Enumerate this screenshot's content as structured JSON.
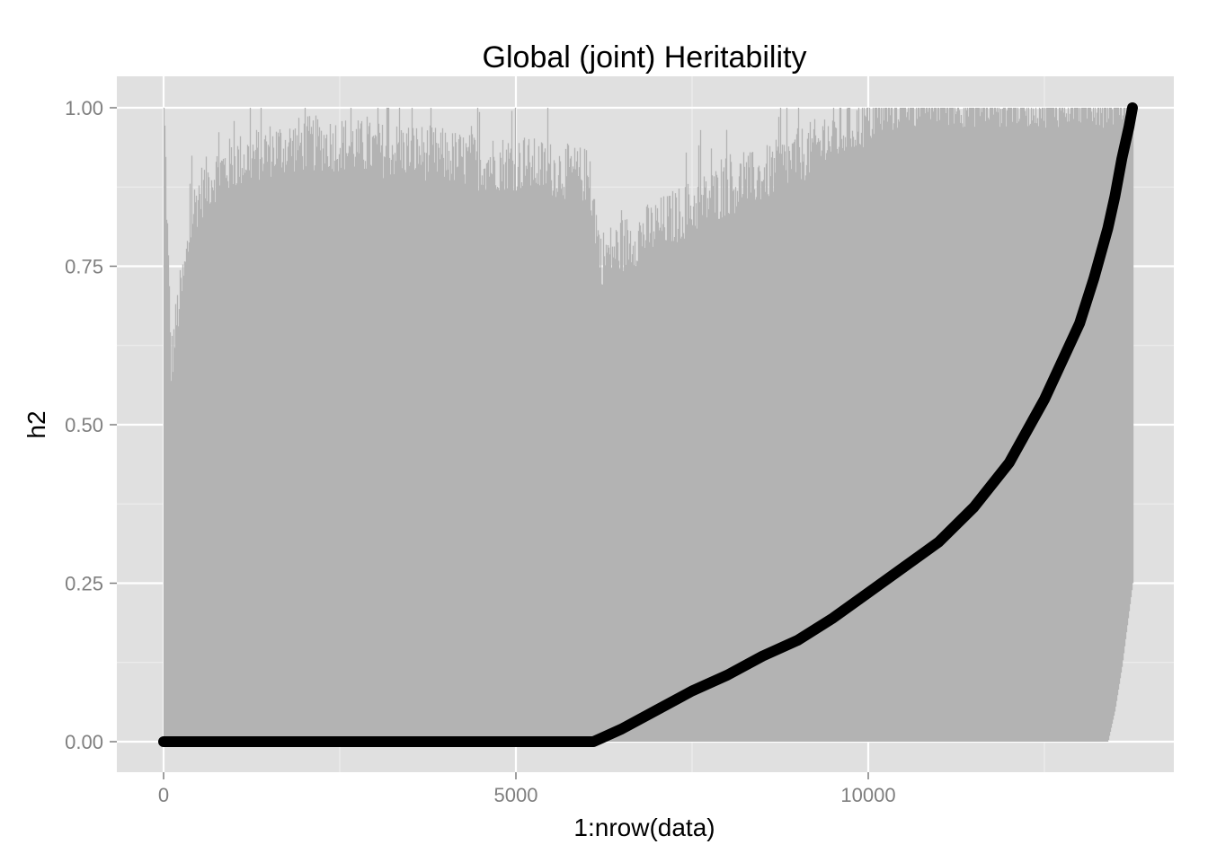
{
  "chart_data": {
    "type": "line",
    "title": "Global (joint) Heritability",
    "xlabel": "1:nrow(data)",
    "ylabel": "h2",
    "xlim": [
      0,
      13800
    ],
    "ylim": [
      0,
      1
    ],
    "x_ticks": [
      0,
      5000,
      10000
    ],
    "x_tick_labels": [
      "0",
      "5000",
      "10000"
    ],
    "y_ticks": [
      0,
      0.25,
      0.5,
      0.75,
      1
    ],
    "y_tick_labels": [
      "0.00",
      "0.25",
      "0.50",
      "0.75",
      "1.00"
    ],
    "grid": true,
    "colors": {
      "panel": "#e0e0e0",
      "grid_major": "#ffffff",
      "grid_minor": "#ededed",
      "bars": "#b3b3b3",
      "line": "#000000"
    },
    "series": [
      {
        "style": "bars",
        "x": [
          0,
          100,
          200,
          300,
          400,
          500,
          700,
          1000,
          1500,
          2000,
          2500,
          3000,
          3500,
          4000,
          4500,
          5000,
          5500,
          6000,
          6100,
          6200,
          6500,
          7000,
          7500,
          8000,
          8500,
          9000,
          9500,
          10000,
          10500,
          11000,
          12000,
          13000,
          13400,
          13500,
          13600,
          13750
        ],
        "upper": [
          1.0,
          0.58,
          0.67,
          0.73,
          0.82,
          0.85,
          0.88,
          0.9,
          0.92,
          0.93,
          0.93,
          0.92,
          0.92,
          0.91,
          0.9,
          0.9,
          0.89,
          0.88,
          0.83,
          0.75,
          0.77,
          0.8,
          0.83,
          0.86,
          0.88,
          0.91,
          0.94,
          0.97,
          1.0,
          1.0,
          1.0,
          1.0,
          1.0,
          1.0,
          1.0,
          1.0
        ],
        "lower": [
          0,
          0,
          0,
          0,
          0,
          0,
          0,
          0,
          0,
          0,
          0,
          0,
          0,
          0,
          0,
          0,
          0,
          0,
          0,
          0,
          0,
          0,
          0,
          0,
          0,
          0,
          0,
          0,
          0,
          0,
          0,
          0,
          0,
          0.05,
          0.12,
          0.25
        ]
      },
      {
        "style": "line",
        "x": [
          0,
          6100,
          6200,
          6500,
          7000,
          7500,
          8000,
          8500,
          9000,
          9500,
          10000,
          10500,
          11000,
          11500,
          12000,
          12500,
          13000,
          13200,
          13400,
          13500,
          13600,
          13700,
          13750
        ],
        "y": [
          0,
          0,
          0.005,
          0.02,
          0.05,
          0.08,
          0.105,
          0.135,
          0.16,
          0.195,
          0.235,
          0.275,
          0.315,
          0.37,
          0.44,
          0.54,
          0.66,
          0.73,
          0.81,
          0.86,
          0.92,
          0.97,
          1.0
        ]
      }
    ]
  }
}
